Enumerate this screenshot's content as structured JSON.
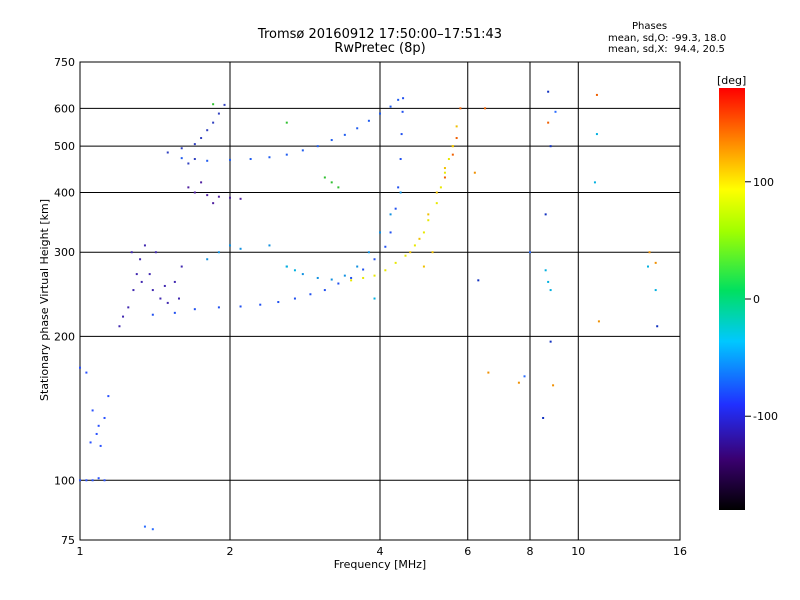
{
  "header": {
    "title": "Tromsø 20160912 17:50:00–17:51:43",
    "subtitle": "RwPretec (8p)",
    "stats_title": "Phases",
    "stats_o": "mean, sd,O: -99.3, 18.0",
    "stats_x": "mean, sd,X:  94.4, 20.5"
  },
  "colorbar": {
    "unit": "[deg]",
    "min": -180,
    "max": 180,
    "ticks": [
      "100",
      "0",
      "-100"
    ],
    "tick_values": [
      100,
      0,
      -100
    ]
  },
  "chart_data": {
    "type": "scatter",
    "xlabel": "Frequency [MHz]",
    "ylabel": "Stationary phase Virtual Height [km]",
    "x_scale": "log",
    "y_scale": "log",
    "xlim": [
      1,
      16
    ],
    "ylim": [
      75,
      750
    ],
    "x_ticks": [
      1,
      2,
      4,
      6,
      8,
      10,
      16
    ],
    "x_tick_labels": [
      "1",
      "2",
      "4",
      "6",
      "8",
      "10",
      "16"
    ],
    "y_ticks": [
      75,
      100,
      200,
      300,
      400,
      500,
      600,
      750
    ],
    "y_tick_labels": [
      "75",
      "100",
      "200",
      "300",
      "400",
      "500",
      "600",
      "750"
    ],
    "grid_x": [
      2,
      4,
      6,
      8,
      10
    ],
    "grid_y": [
      100,
      200,
      300,
      400,
      500,
      600
    ],
    "series": [
      {
        "color": "#2850ff",
        "phase": -100,
        "points": [
          [
            1.0,
            100
          ],
          [
            1.03,
            100
          ],
          [
            1.06,
            100
          ],
          [
            1.09,
            101
          ],
          [
            1.12,
            100
          ],
          [
            1.0,
            172
          ],
          [
            1.03,
            168
          ],
          [
            1.06,
            140
          ],
          [
            1.08,
            125
          ],
          [
            1.1,
            118
          ],
          [
            1.12,
            135
          ],
          [
            1.14,
            150
          ],
          [
            1.05,
            120
          ],
          [
            1.09,
            130
          ]
        ]
      },
      {
        "color": "#2050f0",
        "phase": -100,
        "points": [
          [
            1.4,
            222
          ],
          [
            1.55,
            224
          ],
          [
            1.7,
            228
          ],
          [
            1.9,
            230
          ],
          [
            2.1,
            231
          ],
          [
            2.3,
            233
          ],
          [
            2.5,
            236
          ],
          [
            2.7,
            240
          ],
          [
            2.9,
            245
          ],
          [
            3.1,
            250
          ],
          [
            3.3,
            258
          ],
          [
            3.5,
            265
          ],
          [
            3.7,
            276
          ],
          [
            3.9,
            290
          ],
          [
            4.1,
            308
          ],
          [
            4.2,
            330
          ],
          [
            4.3,
            370
          ],
          [
            4.35,
            410
          ],
          [
            4.4,
            470
          ],
          [
            4.42,
            530
          ],
          [
            4.44,
            590
          ],
          [
            4.45,
            630
          ]
        ]
      },
      {
        "color": "#1f5cf0",
        "phase": -100,
        "points": [
          [
            1.6,
            472
          ],
          [
            1.8,
            466
          ],
          [
            2.0,
            468
          ],
          [
            2.2,
            470
          ],
          [
            2.4,
            474
          ],
          [
            2.6,
            480
          ],
          [
            2.8,
            490
          ],
          [
            3.0,
            500
          ],
          [
            3.2,
            515
          ],
          [
            3.4,
            528
          ],
          [
            3.6,
            545
          ],
          [
            3.8,
            565
          ],
          [
            4.0,
            585
          ],
          [
            4.2,
            605
          ],
          [
            4.35,
            625
          ]
        ]
      },
      {
        "color": "#3040c0",
        "phase": -110,
        "points": [
          [
            1.5,
            485
          ],
          [
            1.6,
            495
          ],
          [
            1.7,
            505
          ],
          [
            1.75,
            520
          ],
          [
            1.8,
            540
          ],
          [
            1.85,
            560
          ],
          [
            1.9,
            585
          ],
          [
            1.95,
            610
          ],
          [
            1.7,
            470
          ],
          [
            1.65,
            460
          ]
        ]
      },
      {
        "color": "#4028b0",
        "phase": -130,
        "points": [
          [
            1.2,
            210
          ],
          [
            1.25,
            230
          ],
          [
            1.28,
            250
          ],
          [
            1.3,
            270
          ],
          [
            1.32,
            290
          ],
          [
            1.35,
            310
          ],
          [
            1.38,
            270
          ],
          [
            1.4,
            250
          ],
          [
            1.45,
            240
          ],
          [
            1.5,
            235
          ],
          [
            1.55,
            260
          ],
          [
            1.6,
            280
          ],
          [
            1.22,
            220
          ],
          [
            1.27,
            300
          ],
          [
            1.33,
            260
          ],
          [
            1.42,
            300
          ],
          [
            1.48,
            255
          ],
          [
            1.58,
            240
          ]
        ]
      },
      {
        "color": "#5020a0",
        "phase": -140,
        "points": [
          [
            1.65,
            410
          ],
          [
            1.7,
            400
          ],
          [
            1.8,
            395
          ],
          [
            1.9,
            392
          ],
          [
            2.0,
            390
          ],
          [
            2.1,
            388
          ],
          [
            1.75,
            420
          ],
          [
            1.85,
            380
          ]
        ]
      },
      {
        "color": "#1090e0",
        "phase": -80,
        "points": [
          [
            1.8,
            290
          ],
          [
            1.9,
            300
          ],
          [
            2.0,
            310
          ],
          [
            2.1,
            305
          ],
          [
            2.4,
            310
          ],
          [
            2.6,
            280
          ],
          [
            2.8,
            270
          ],
          [
            3.0,
            265
          ],
          [
            3.2,
            263
          ],
          [
            3.4,
            268
          ],
          [
            3.6,
            280
          ],
          [
            3.8,
            300
          ],
          [
            4.0,
            330
          ],
          [
            4.2,
            360
          ],
          [
            4.4,
            400
          ]
        ]
      },
      {
        "color": "#e8e800",
        "phase": 110,
        "points": [
          [
            3.5,
            262
          ],
          [
            3.7,
            265
          ],
          [
            3.9,
            268
          ],
          [
            4.1,
            275
          ],
          [
            4.3,
            285
          ],
          [
            4.5,
            295
          ],
          [
            4.7,
            310
          ],
          [
            4.9,
            330
          ],
          [
            5.0,
            350
          ],
          [
            5.2,
            380
          ],
          [
            5.3,
            410
          ],
          [
            5.4,
            440
          ],
          [
            5.5,
            470
          ],
          [
            5.6,
            500
          ]
        ]
      },
      {
        "color": "#f0c000",
        "phase": 120,
        "points": [
          [
            4.6,
            300
          ],
          [
            4.8,
            320
          ],
          [
            5.0,
            360
          ],
          [
            5.2,
            400
          ],
          [
            5.4,
            450
          ],
          [
            5.6,
            500
          ],
          [
            5.7,
            550
          ],
          [
            4.9,
            280
          ],
          [
            5.1,
            300
          ]
        ]
      },
      {
        "color": "#f06000",
        "phase": 150,
        "points": [
          [
            5.8,
            600
          ],
          [
            5.4,
            430
          ],
          [
            5.6,
            480
          ],
          [
            6.5,
            600
          ],
          [
            8.7,
            560
          ],
          [
            10.9,
            640
          ],
          [
            5.7,
            520
          ]
        ]
      },
      {
        "color": "#30c030",
        "phase": 30,
        "points": [
          [
            3.1,
            430
          ],
          [
            3.2,
            420
          ],
          [
            3.3,
            410
          ],
          [
            1.85,
            612
          ],
          [
            2.6,
            560
          ]
        ]
      },
      {
        "color": "#00b0e0",
        "phase": -60,
        "points": [
          [
            2.6,
            280
          ],
          [
            2.7,
            275
          ],
          [
            3.9,
            240
          ],
          [
            8.6,
            275
          ],
          [
            8.7,
            260
          ],
          [
            8.8,
            250
          ],
          [
            13.8,
            280
          ],
          [
            14.3,
            250
          ],
          [
            10.9,
            530
          ],
          [
            10.8,
            420
          ]
        ]
      },
      {
        "color": "#1030c0",
        "phase": -120,
        "points": [
          [
            8.7,
            650
          ],
          [
            8.8,
            500
          ],
          [
            8.6,
            360
          ],
          [
            8.5,
            135
          ],
          [
            14.4,
            210
          ],
          [
            6.3,
            262
          ],
          [
            8.8,
            195
          ]
        ]
      },
      {
        "color": "#f09000",
        "phase": 140,
        "points": [
          [
            6.6,
            168
          ],
          [
            7.6,
            160
          ],
          [
            8.9,
            158
          ],
          [
            13.9,
            300
          ],
          [
            14.3,
            285
          ],
          [
            11.0,
            215
          ],
          [
            6.2,
            440
          ]
        ]
      },
      {
        "color": "#2a6cff",
        "phase": -95,
        "points": [
          [
            1.35,
            80
          ],
          [
            1.4,
            79
          ],
          [
            7.8,
            165
          ],
          [
            8.0,
            300
          ],
          [
            9.0,
            590
          ]
        ]
      }
    ]
  }
}
